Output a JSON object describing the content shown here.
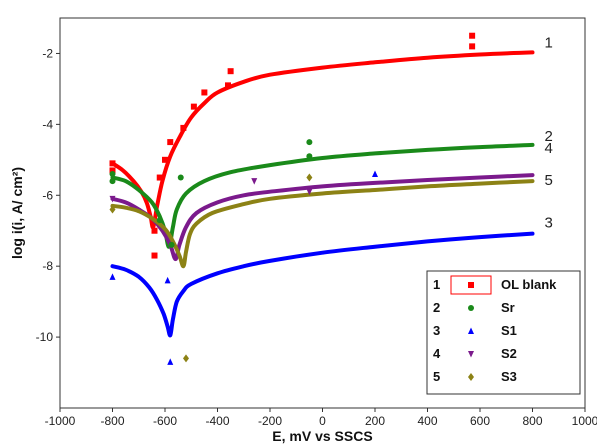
{
  "chart_data": {
    "type": "scatter",
    "xlabel": "E, mV vs SSCS",
    "ylabel": "log i(i, A/ cm²)",
    "xlim": [
      -1000,
      1000
    ],
    "ylim": [
      -12,
      -1
    ],
    "xticks": [
      "-1000",
      "-800",
      "-600",
      "-400",
      "-200",
      "0",
      "200",
      "400",
      "600",
      "800",
      "1000"
    ],
    "yticks": [
      "-2",
      "-4",
      "-6",
      "-8",
      "-10"
    ],
    "grid": false,
    "legend_position": "bottom-right",
    "series": [
      {
        "id": "1",
        "name": "OL blank",
        "color": "#ff0000",
        "marker": "square",
        "curve": [
          [
            -800,
            -5.1
          ],
          [
            -760,
            -5.3
          ],
          [
            -720,
            -5.6
          ],
          [
            -690,
            -5.9
          ],
          [
            -670,
            -6.2
          ],
          [
            -655,
            -6.6
          ],
          [
            -645,
            -6.9
          ],
          [
            -630,
            -6.3
          ],
          [
            -610,
            -5.6
          ],
          [
            -580,
            -4.9
          ],
          [
            -540,
            -4.3
          ],
          [
            -500,
            -3.8
          ],
          [
            -450,
            -3.4
          ],
          [
            -400,
            -3.1
          ],
          [
            -300,
            -2.8
          ],
          [
            -200,
            -2.6
          ],
          [
            0,
            -2.4
          ],
          [
            200,
            -2.25
          ],
          [
            400,
            -2.12
          ],
          [
            600,
            -2.03
          ],
          [
            800,
            -1.97
          ]
        ],
        "points": [
          [
            -800,
            -5.3
          ],
          [
            -800,
            -5.1
          ],
          [
            -640,
            -7.7
          ],
          [
            -640,
            -7.0
          ],
          [
            -620,
            -5.5
          ],
          [
            -600,
            -5.0
          ],
          [
            -580,
            -4.5
          ],
          [
            -530,
            -4.1
          ],
          [
            -490,
            -3.5
          ],
          [
            -450,
            -3.1
          ],
          [
            -360,
            -2.9
          ],
          [
            -350,
            -2.5
          ],
          [
            570,
            -1.8
          ],
          [
            570,
            -1.5
          ]
        ]
      },
      {
        "id": "2",
        "name": "Sr",
        "color": "#1a8a1a",
        "marker": "circle",
        "curve": [
          [
            -800,
            -5.5
          ],
          [
            -750,
            -5.6
          ],
          [
            -700,
            -5.85
          ],
          [
            -650,
            -6.2
          ],
          [
            -620,
            -6.6
          ],
          [
            -600,
            -7.0
          ],
          [
            -585,
            -7.45
          ],
          [
            -570,
            -6.9
          ],
          [
            -555,
            -6.4
          ],
          [
            -520,
            -5.95
          ],
          [
            -450,
            -5.6
          ],
          [
            -350,
            -5.35
          ],
          [
            -200,
            -5.15
          ],
          [
            0,
            -4.95
          ],
          [
            200,
            -4.82
          ],
          [
            400,
            -4.72
          ],
          [
            600,
            -4.64
          ],
          [
            800,
            -4.58
          ]
        ],
        "points": [
          [
            -800,
            -5.4
          ],
          [
            -800,
            -5.6
          ],
          [
            -620,
            -6.7
          ],
          [
            -575,
            -7.4
          ],
          [
            -540,
            -5.5
          ],
          [
            -50,
            -4.9
          ],
          [
            -50,
            -4.5
          ]
        ]
      },
      {
        "id": "3",
        "name": "S1",
        "color": "#0000ff",
        "marker": "triangle-up",
        "curve": [
          [
            -800,
            -8.0
          ],
          [
            -750,
            -8.1
          ],
          [
            -700,
            -8.3
          ],
          [
            -660,
            -8.6
          ],
          [
            -630,
            -8.95
          ],
          [
            -605,
            -9.35
          ],
          [
            -590,
            -9.7
          ],
          [
            -580,
            -9.95
          ],
          [
            -570,
            -9.5
          ],
          [
            -555,
            -9.0
          ],
          [
            -530,
            -8.7
          ],
          [
            -500,
            -8.5
          ],
          [
            -400,
            -8.2
          ],
          [
            -300,
            -8.0
          ],
          [
            -200,
            -7.85
          ],
          [
            0,
            -7.62
          ],
          [
            200,
            -7.45
          ],
          [
            400,
            -7.3
          ],
          [
            600,
            -7.18
          ],
          [
            800,
            -7.08
          ]
        ],
        "points": [
          [
            -800,
            -8.3
          ],
          [
            -580,
            -10.7
          ],
          [
            -590,
            -8.4
          ],
          [
            200,
            -5.4
          ]
        ]
      },
      {
        "id": "4",
        "name": "S2",
        "color": "#7b1a8c",
        "marker": "triangle-down",
        "curve": [
          [
            -800,
            -6.1
          ],
          [
            -750,
            -6.2
          ],
          [
            -700,
            -6.4
          ],
          [
            -650,
            -6.65
          ],
          [
            -610,
            -7.0
          ],
          [
            -580,
            -7.4
          ],
          [
            -560,
            -7.8
          ],
          [
            -545,
            -7.4
          ],
          [
            -520,
            -6.9
          ],
          [
            -480,
            -6.5
          ],
          [
            -400,
            -6.2
          ],
          [
            -300,
            -6.0
          ],
          [
            -200,
            -5.9
          ],
          [
            0,
            -5.75
          ],
          [
            200,
            -5.65
          ],
          [
            400,
            -5.57
          ],
          [
            600,
            -5.5
          ],
          [
            800,
            -5.43
          ]
        ],
        "points": [
          [
            -800,
            -6.1
          ],
          [
            -260,
            -5.6
          ],
          [
            -50,
            -5.9
          ]
        ]
      },
      {
        "id": "5",
        "name": "S3",
        "color": "#8c8215",
        "marker": "diamond",
        "curve": [
          [
            -800,
            -6.3
          ],
          [
            -750,
            -6.35
          ],
          [
            -700,
            -6.45
          ],
          [
            -650,
            -6.65
          ],
          [
            -600,
            -6.95
          ],
          [
            -570,
            -7.3
          ],
          [
            -545,
            -7.7
          ],
          [
            -530,
            -8.0
          ],
          [
            -520,
            -7.6
          ],
          [
            -505,
            -7.1
          ],
          [
            -480,
            -6.8
          ],
          [
            -420,
            -6.5
          ],
          [
            -300,
            -6.25
          ],
          [
            -200,
            -6.1
          ],
          [
            0,
            -5.95
          ],
          [
            200,
            -5.85
          ],
          [
            400,
            -5.75
          ],
          [
            600,
            -5.67
          ],
          [
            800,
            -5.6
          ]
        ],
        "points": [
          [
            -800,
            -6.4
          ],
          [
            -520,
            -10.6
          ],
          [
            -50,
            -5.5
          ]
        ]
      }
    ]
  }
}
